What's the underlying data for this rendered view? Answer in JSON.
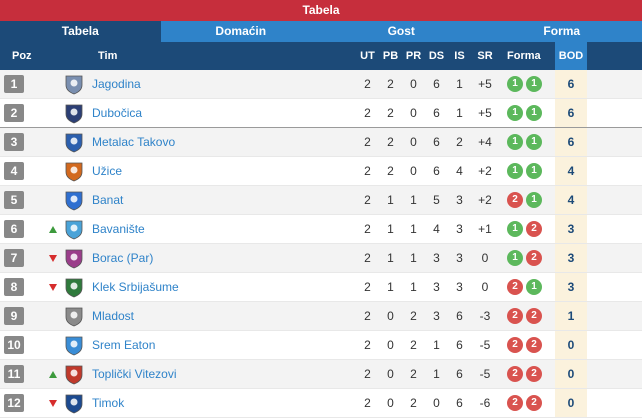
{
  "header": {
    "title": "Tabela"
  },
  "tabs": [
    "Tabela",
    "Domaćin",
    "Gost",
    "Forma"
  ],
  "columns": {
    "poz": "Poz",
    "tim": "Tim",
    "ut": "UT",
    "pb": "PB",
    "pr": "PR",
    "ds": "DS",
    "is": "IS",
    "sr": "SR",
    "forma": "Forma",
    "bod": "BOD"
  },
  "rows": [
    {
      "poz": "1",
      "trend": "",
      "team": "Jagodina",
      "logo_color": "#7a8fb0",
      "ut": "2",
      "pb": "2",
      "pr": "0",
      "ds": "6",
      "is": "1",
      "sr": "+5",
      "form": [
        "1",
        "1"
      ],
      "form_kind": [
        "w",
        "w"
      ],
      "bod": "6"
    },
    {
      "poz": "2",
      "trend": "",
      "team": "Dubočica",
      "logo_color": "#2c3f75",
      "ut": "2",
      "pb": "2",
      "pr": "0",
      "ds": "6",
      "is": "1",
      "sr": "+5",
      "form": [
        "1",
        "1"
      ],
      "form_kind": [
        "w",
        "w"
      ],
      "bod": "6"
    },
    {
      "poz": "3",
      "trend": "",
      "team": "Metalac Takovo",
      "logo_color": "#2b5fae",
      "ut": "2",
      "pb": "2",
      "pr": "0",
      "ds": "6",
      "is": "2",
      "sr": "+4",
      "form": [
        "1",
        "1"
      ],
      "form_kind": [
        "w",
        "w"
      ],
      "bod": "6"
    },
    {
      "poz": "4",
      "trend": "",
      "team": "Užice",
      "logo_color": "#d2691e",
      "ut": "2",
      "pb": "2",
      "pr": "0",
      "ds": "6",
      "is": "4",
      "sr": "+2",
      "form": [
        "1",
        "1"
      ],
      "form_kind": [
        "w",
        "w"
      ],
      "bod": "4"
    },
    {
      "poz": "5",
      "trend": "",
      "team": "Banat",
      "logo_color": "#2f6fd0",
      "ut": "2",
      "pb": "1",
      "pr": "1",
      "ds": "5",
      "is": "3",
      "sr": "+2",
      "form": [
        "2",
        "1"
      ],
      "form_kind": [
        "l",
        "w"
      ],
      "bod": "4"
    },
    {
      "poz": "6",
      "trend": "up",
      "team": "Bavanište",
      "logo_color": "#4aa3d8",
      "ut": "2",
      "pb": "1",
      "pr": "1",
      "ds": "4",
      "is": "3",
      "sr": "+1",
      "form": [
        "1",
        "2"
      ],
      "form_kind": [
        "w",
        "l"
      ],
      "bod": "3"
    },
    {
      "poz": "7",
      "trend": "down",
      "team": "Borac (Par)",
      "logo_color": "#9a3d8a",
      "ut": "2",
      "pb": "1",
      "pr": "1",
      "ds": "3",
      "is": "3",
      "sr": "0",
      "form": [
        "1",
        "2"
      ],
      "form_kind": [
        "w",
        "l"
      ],
      "bod": "3"
    },
    {
      "poz": "8",
      "trend": "down",
      "team": "Klek Srbijašume",
      "logo_color": "#2f7a3c",
      "ut": "2",
      "pb": "1",
      "pr": "1",
      "ds": "3",
      "is": "3",
      "sr": "0",
      "form": [
        "2",
        "1"
      ],
      "form_kind": [
        "l",
        "w"
      ],
      "bod": "3"
    },
    {
      "poz": "9",
      "trend": "",
      "team": "Mladost",
      "logo_color": "#8a8a8a",
      "ut": "2",
      "pb": "0",
      "pr": "2",
      "ds": "3",
      "is": "6",
      "sr": "-3",
      "form": [
        "2",
        "2"
      ],
      "form_kind": [
        "l",
        "l"
      ],
      "bod": "1"
    },
    {
      "poz": "10",
      "trend": "",
      "team": "Srem Eaton",
      "logo_color": "#3a8dd6",
      "ut": "2",
      "pb": "0",
      "pr": "2",
      "ds": "1",
      "is": "6",
      "sr": "-5",
      "form": [
        "2",
        "2"
      ],
      "form_kind": [
        "l",
        "l"
      ],
      "bod": "0"
    },
    {
      "poz": "11",
      "trend": "up",
      "team": "Toplički Vitezovi",
      "logo_color": "#c0392b",
      "ut": "2",
      "pb": "0",
      "pr": "2",
      "ds": "1",
      "is": "6",
      "sr": "-5",
      "form": [
        "2",
        "2"
      ],
      "form_kind": [
        "l",
        "l"
      ],
      "bod": "0"
    },
    {
      "poz": "12",
      "trend": "down",
      "team": "Timok",
      "logo_color": "#1c4a90",
      "ut": "2",
      "pb": "0",
      "pr": "2",
      "ds": "0",
      "is": "6",
      "sr": "-6",
      "form": [
        "2",
        "2"
      ],
      "form_kind": [
        "l",
        "l"
      ],
      "bod": "0"
    }
  ],
  "colors": {
    "header_red": "#c62e3c",
    "tab_blue": "#2f83c9",
    "dark_blue": "#1c4a78",
    "win": "#5cb85c",
    "loss": "#d9534f",
    "trend_up": "#3c9a3c",
    "trend_down": "#d62d2d"
  }
}
